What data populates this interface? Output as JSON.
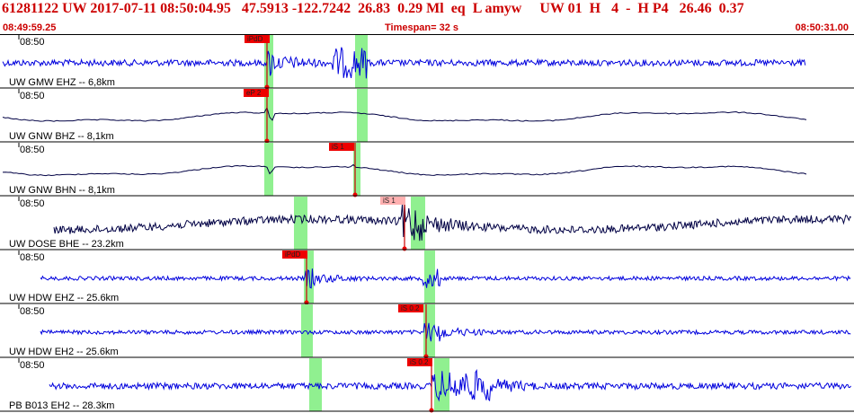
{
  "header": {
    "line": "61281122 UW 2017-07-11 08:50:04.95   47.5913 -122.7242  26.83  0.29 Ml  eq  L amyw     UW 01  H   4  -  H P4   26.46  0.37",
    "start_time": "08:49:59.25",
    "timespan": "Timespan=  32 s",
    "end_time": "08:50:31.00"
  },
  "colors": {
    "header_text": "#cc0000",
    "trace_blue": "#0000dd",
    "trace_dark": "#000044",
    "highlight_green": "#90f090",
    "pick_red": "#ee0000",
    "pick_pink": "#ffb0b0"
  },
  "traces": [
    {
      "time_label": "08:50",
      "station_label": "UW GMW EHZ -- 6,8km",
      "color": "trace_blue",
      "style": "noisy",
      "picks": [
        {
          "label": "iPdD",
          "color": "pick_red"
        }
      ]
    },
    {
      "time_label": "08:50",
      "station_label": "UW GNW BHZ -- 8,1km",
      "color": "trace_dark",
      "style": "smooth",
      "picks": [
        {
          "label": "eP 2",
          "color": "pick_red"
        }
      ]
    },
    {
      "time_label": "08:50",
      "station_label": "UW GNW BHN -- 8,1km",
      "color": "trace_dark",
      "style": "smooth",
      "picks": [
        {
          "label": "iS 1",
          "color": "pick_red"
        }
      ]
    },
    {
      "time_label": "08:50",
      "station_label": "UW DOSE BHE -- 23.2km",
      "color": "trace_dark",
      "style": "wavy",
      "picks": [
        {
          "label": "iS 1",
          "color": "pick_pink"
        }
      ]
    },
    {
      "time_label": "08:50",
      "station_label": "UW HDW EHZ -- 25.6km",
      "color": "trace_blue",
      "style": "quiet",
      "picks": [
        {
          "label": "iPdD",
          "color": "pick_red"
        }
      ]
    },
    {
      "time_label": "08:50",
      "station_label": "UW HDW EH2 -- 25.6km",
      "color": "trace_blue",
      "style": "quiet",
      "picks": [
        {
          "label": "iS 0.2",
          "color": "pick_red"
        }
      ]
    },
    {
      "time_label": "08:50",
      "station_label": "PB B013 EH2 -- 28.3km",
      "color": "trace_blue",
      "style": "noisy",
      "picks": [
        {
          "label": "iS 0.2",
          "color": "pick_red"
        }
      ]
    }
  ]
}
